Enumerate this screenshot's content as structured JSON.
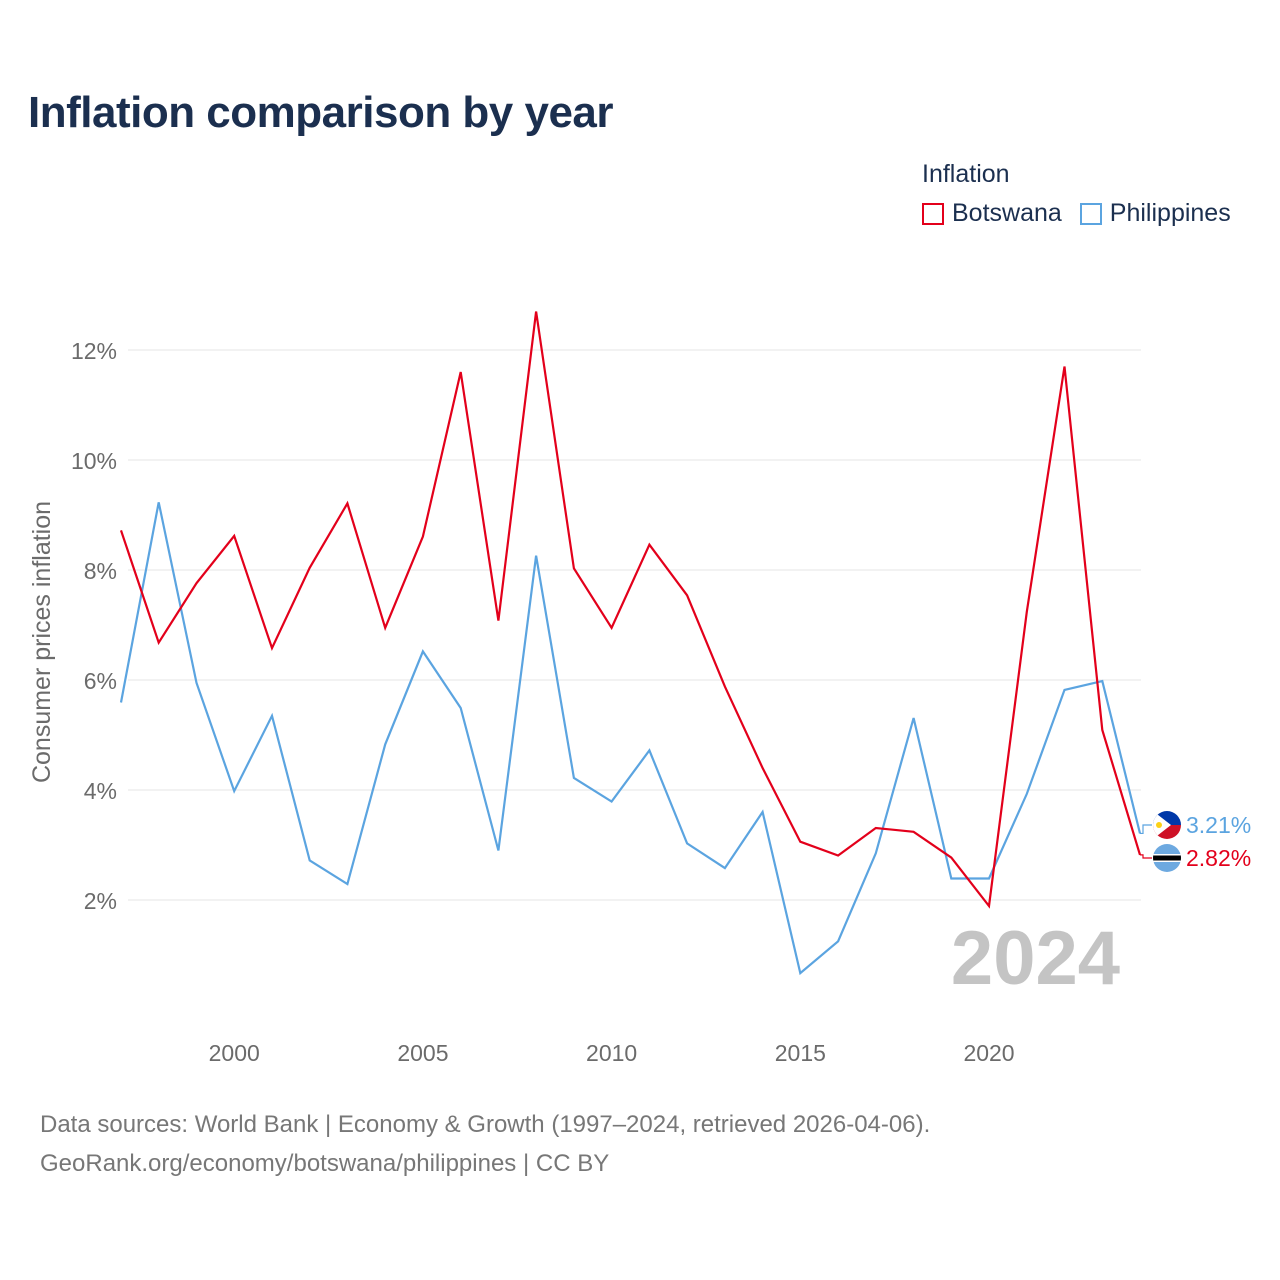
{
  "title": "Inflation comparison by year",
  "legend": {
    "title": "Inflation",
    "items": [
      {
        "label": "Botswana",
        "color": "#e3001b"
      },
      {
        "label": "Philippines",
        "color": "#5ba4e0"
      }
    ]
  },
  "footer": {
    "line1": "Data sources: World Bank | Economy & Growth (1997–2024, retrieved 2026-04-06).",
    "line2": "GeoRank.org/economy/botswana/philippines | CC BY"
  },
  "chart_data": {
    "type": "line",
    "title": "Inflation comparison by year",
    "xlabel": "",
    "ylabel": "Consumer prices inflation",
    "x": [
      1997,
      1998,
      1999,
      2000,
      2001,
      2002,
      2003,
      2004,
      2005,
      2006,
      2007,
      2008,
      2009,
      2010,
      2011,
      2012,
      2013,
      2014,
      2015,
      2016,
      2017,
      2018,
      2019,
      2020,
      2021,
      2022,
      2023,
      2024
    ],
    "xlim": [
      1997,
      2024
    ],
    "ylim": [
      0,
      13.5
    ],
    "x_ticks": [
      2000,
      2005,
      2010,
      2015,
      2020
    ],
    "y_ticks": [
      2,
      4,
      6,
      8,
      10,
      12
    ],
    "y_tick_labels": [
      "2%",
      "4%",
      "6%",
      "8%",
      "10%",
      "12%"
    ],
    "grid": true,
    "year_watermark": "2024",
    "series": [
      {
        "name": "Botswana",
        "color": "#e3001b",
        "end_label": "2.82%",
        "values": [
          8.72,
          6.68,
          7.76,
          8.62,
          6.58,
          8.04,
          9.21,
          6.95,
          8.61,
          11.6,
          7.08,
          12.7,
          8.03,
          6.95,
          8.46,
          7.54,
          5.88,
          4.4,
          3.06,
          2.81,
          3.31,
          3.24,
          2.77,
          1.89,
          7.24,
          11.7,
          5.09,
          2.82
        ]
      },
      {
        "name": "Philippines",
        "color": "#5ba4e0",
        "end_label": "3.21%",
        "values": [
          5.59,
          9.23,
          5.95,
          3.98,
          5.35,
          2.72,
          2.29,
          4.83,
          6.52,
          5.49,
          2.9,
          8.26,
          4.22,
          3.79,
          4.72,
          3.03,
          2.58,
          3.6,
          0.67,
          1.25,
          2.85,
          5.31,
          2.39,
          2.39,
          3.93,
          5.82,
          5.98,
          3.21
        ]
      }
    ]
  }
}
